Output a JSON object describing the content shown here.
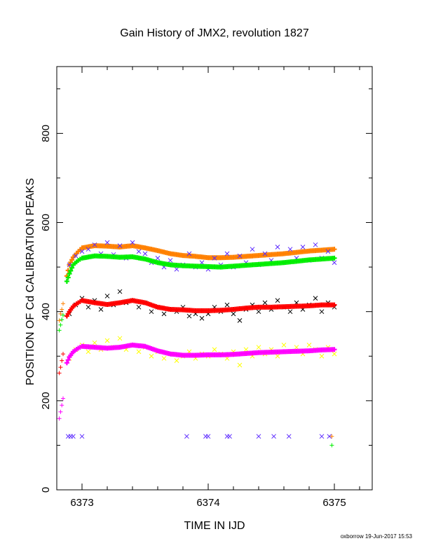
{
  "chart_data": {
    "type": "scatter",
    "title": "Gain History of JMX2, revolution 1827",
    "xlabel": "TIME IN IJD",
    "ylabel": "POSITION OF Cd CALIBRATION PEAKS",
    "footer": "oxborrow 19-Jun-2017 15:53",
    "xlim": [
      6372.8,
      6375.3
    ],
    "ylim": [
      0,
      950
    ],
    "xticks": [
      "6373",
      "6374",
      "6375"
    ],
    "xtick_values": [
      6373,
      6374,
      6375
    ],
    "yticks": [
      "0",
      "200",
      "400",
      "600",
      "800"
    ],
    "ytick_values": [
      0,
      200,
      400,
      600,
      800
    ],
    "grid": false,
    "legend": "none",
    "series": [
      {
        "color": "#ff8000",
        "marker": "plus",
        "fit": true,
        "points": [
          [
            6372.82,
            380
          ],
          [
            6372.83,
            395
          ],
          [
            6372.84,
            405
          ],
          [
            6372.85,
            418
          ],
          [
            6372.88,
            480
          ],
          [
            6372.9,
            505
          ],
          [
            6372.93,
            522
          ],
          [
            6372.97,
            535
          ],
          [
            6373.0,
            543
          ],
          [
            6373.1,
            548
          ],
          [
            6373.2,
            547
          ],
          [
            6373.3,
            545
          ],
          [
            6373.4,
            548
          ],
          [
            6373.5,
            543
          ],
          [
            6373.6,
            537
          ],
          [
            6373.7,
            530
          ],
          [
            6373.8,
            526
          ],
          [
            6373.9,
            524
          ],
          [
            6374.0,
            521
          ],
          [
            6374.1,
            521
          ],
          [
            6374.2,
            522
          ],
          [
            6374.3,
            524
          ],
          [
            6374.4,
            526
          ],
          [
            6374.5,
            528
          ],
          [
            6374.6,
            530
          ],
          [
            6374.7,
            533
          ],
          [
            6374.8,
            536
          ],
          [
            6374.9,
            538
          ],
          [
            6375.0,
            540
          ],
          [
            6374.98,
            120
          ]
        ]
      },
      {
        "color": "#5a28ff",
        "marker": "cross",
        "points": [
          [
            6372.9,
            505
          ],
          [
            6372.95,
            525
          ],
          [
            6373.0,
            535
          ],
          [
            6373.05,
            540
          ],
          [
            6373.1,
            550
          ],
          [
            6373.15,
            530
          ],
          [
            6373.2,
            555
          ],
          [
            6373.25,
            528
          ],
          [
            6373.3,
            548
          ],
          [
            6373.35,
            520
          ],
          [
            6373.4,
            555
          ],
          [
            6373.45,
            535
          ],
          [
            6373.5,
            530
          ],
          [
            6373.55,
            510
          ],
          [
            6373.6,
            520
          ],
          [
            6373.65,
            500
          ],
          [
            6373.7,
            515
          ],
          [
            6373.75,
            495
          ],
          [
            6373.8,
            505
          ],
          [
            6373.85,
            530
          ],
          [
            6373.9,
            500
          ],
          [
            6373.95,
            510
          ],
          [
            6374.0,
            495
          ],
          [
            6374.05,
            520
          ],
          [
            6374.1,
            505
          ],
          [
            6374.15,
            530
          ],
          [
            6374.2,
            500
          ],
          [
            6374.25,
            525
          ],
          [
            6374.3,
            510
          ],
          [
            6374.35,
            540
          ],
          [
            6374.4,
            505
          ],
          [
            6374.45,
            530
          ],
          [
            6374.5,
            515
          ],
          [
            6374.55,
            545
          ],
          [
            6374.6,
            510
          ],
          [
            6374.65,
            540
          ],
          [
            6374.7,
            520
          ],
          [
            6374.75,
            545
          ],
          [
            6374.8,
            515
          ],
          [
            6374.85,
            550
          ],
          [
            6374.9,
            520
          ],
          [
            6374.95,
            535
          ],
          [
            6375.0,
            510
          ],
          [
            6372.89,
            120
          ],
          [
            6372.91,
            120
          ],
          [
            6372.93,
            120
          ],
          [
            6373.0,
            120
          ],
          [
            6373.83,
            120
          ],
          [
            6373.98,
            120
          ],
          [
            6374.0,
            120
          ],
          [
            6374.15,
            120
          ],
          [
            6374.17,
            120
          ],
          [
            6374.4,
            120
          ],
          [
            6374.52,
            120
          ],
          [
            6374.64,
            120
          ],
          [
            6374.9,
            120
          ],
          [
            6374.96,
            120
          ]
        ]
      },
      {
        "color": "#00ee00",
        "marker": "plus",
        "fit": true,
        "points": [
          [
            6372.82,
            358
          ],
          [
            6372.83,
            370
          ],
          [
            6372.84,
            382
          ],
          [
            6372.85,
            392
          ],
          [
            6372.88,
            468
          ],
          [
            6372.9,
            485
          ],
          [
            6372.93,
            505
          ],
          [
            6372.97,
            515
          ],
          [
            6373.0,
            520
          ],
          [
            6373.1,
            525
          ],
          [
            6373.2,
            524
          ],
          [
            6373.3,
            522
          ],
          [
            6373.4,
            523
          ],
          [
            6373.5,
            518
          ],
          [
            6373.6,
            510
          ],
          [
            6373.7,
            505
          ],
          [
            6373.8,
            503
          ],
          [
            6373.9,
            502
          ],
          [
            6374.0,
            501
          ],
          [
            6374.1,
            500
          ],
          [
            6374.2,
            502
          ],
          [
            6374.3,
            504
          ],
          [
            6374.4,
            506
          ],
          [
            6374.5,
            508
          ],
          [
            6374.6,
            510
          ],
          [
            6374.7,
            513
          ],
          [
            6374.8,
            516
          ],
          [
            6374.9,
            518
          ],
          [
            6375.0,
            520
          ],
          [
            6374.98,
            100
          ]
        ]
      },
      {
        "color": "#000000",
        "marker": "cross",
        "points": [
          [
            6372.9,
            395
          ],
          [
            6372.95,
            415
          ],
          [
            6373.0,
            430
          ],
          [
            6373.05,
            410
          ],
          [
            6373.1,
            425
          ],
          [
            6373.15,
            405
          ],
          [
            6373.2,
            435
          ],
          [
            6373.25,
            415
          ],
          [
            6373.3,
            445
          ],
          [
            6373.35,
            420
          ],
          [
            6373.4,
            425
          ],
          [
            6373.45,
            410
          ],
          [
            6373.5,
            420
          ],
          [
            6373.55,
            400
          ],
          [
            6373.6,
            410
          ],
          [
            6373.65,
            395
          ],
          [
            6373.7,
            405
          ],
          [
            6373.75,
            400
          ],
          [
            6373.8,
            410
          ],
          [
            6373.85,
            390
          ],
          [
            6373.9,
            395
          ],
          [
            6373.95,
            385
          ],
          [
            6374.0,
            395
          ],
          [
            6374.05,
            410
          ],
          [
            6374.1,
            400
          ],
          [
            6374.15,
            415
          ],
          [
            6374.2,
            395
          ],
          [
            6374.25,
            380
          ],
          [
            6374.3,
            405
          ],
          [
            6374.35,
            415
          ],
          [
            6374.4,
            400
          ],
          [
            6374.45,
            420
          ],
          [
            6374.5,
            405
          ],
          [
            6374.55,
            425
          ],
          [
            6374.6,
            410
          ],
          [
            6374.65,
            400
          ],
          [
            6374.7,
            420
          ],
          [
            6374.75,
            405
          ],
          [
            6374.8,
            415
          ],
          [
            6374.85,
            430
          ],
          [
            6374.9,
            400
          ],
          [
            6374.95,
            420
          ],
          [
            6375.0,
            410
          ]
        ]
      },
      {
        "color": "#ff0000",
        "marker": "plus",
        "fit": true,
        "points": [
          [
            6372.82,
            262
          ],
          [
            6372.83,
            275
          ],
          [
            6372.84,
            290
          ],
          [
            6372.85,
            305
          ],
          [
            6372.88,
            390
          ],
          [
            6372.9,
            400
          ],
          [
            6372.93,
            412
          ],
          [
            6372.97,
            420
          ],
          [
            6373.0,
            425
          ],
          [
            6373.1,
            420
          ],
          [
            6373.2,
            416
          ],
          [
            6373.3,
            420
          ],
          [
            6373.4,
            425
          ],
          [
            6373.5,
            420
          ],
          [
            6373.6,
            410
          ],
          [
            6373.7,
            405
          ],
          [
            6373.8,
            404
          ],
          [
            6373.9,
            402
          ],
          [
            6374.0,
            402
          ],
          [
            6374.1,
            403
          ],
          [
            6374.2,
            405
          ],
          [
            6374.3,
            408
          ],
          [
            6374.4,
            410
          ],
          [
            6374.5,
            410
          ],
          [
            6374.6,
            411
          ],
          [
            6374.7,
            412
          ],
          [
            6374.8,
            413
          ],
          [
            6374.9,
            415
          ],
          [
            6375.0,
            415
          ]
        ]
      },
      {
        "color": "#ffff00",
        "marker": "cross",
        "points": [
          [
            6372.9,
            295
          ],
          [
            6372.95,
            315
          ],
          [
            6373.0,
            325
          ],
          [
            6373.05,
            310
          ],
          [
            6373.1,
            330
          ],
          [
            6373.15,
            315
          ],
          [
            6373.2,
            335
          ],
          [
            6373.25,
            320
          ],
          [
            6373.3,
            340
          ],
          [
            6373.35,
            315
          ],
          [
            6373.4,
            325
          ],
          [
            6373.45,
            310
          ],
          [
            6373.5,
            320
          ],
          [
            6373.55,
            300
          ],
          [
            6373.6,
            310
          ],
          [
            6373.65,
            295
          ],
          [
            6373.7,
            305
          ],
          [
            6373.75,
            290
          ],
          [
            6373.8,
            300
          ],
          [
            6373.85,
            310
          ],
          [
            6373.9,
            295
          ],
          [
            6373.95,
            305
          ],
          [
            6374.0,
            300
          ],
          [
            6374.05,
            315
          ],
          [
            6374.1,
            305
          ],
          [
            6374.15,
            295
          ],
          [
            6374.2,
            310
          ],
          [
            6374.25,
            280
          ],
          [
            6374.3,
            315
          ],
          [
            6374.35,
            300
          ],
          [
            6374.4,
            320
          ],
          [
            6374.45,
            305
          ],
          [
            6374.5,
            315
          ],
          [
            6374.55,
            300
          ],
          [
            6374.6,
            325
          ],
          [
            6374.65,
            310
          ],
          [
            6374.7,
            320
          ],
          [
            6374.75,
            305
          ],
          [
            6374.8,
            325
          ],
          [
            6374.85,
            315
          ],
          [
            6374.9,
            300
          ],
          [
            6374.95,
            320
          ],
          [
            6375.0,
            305
          ]
        ]
      },
      {
        "color": "#ff00ff",
        "marker": "plus",
        "fit": true,
        "points": [
          [
            6372.82,
            160
          ],
          [
            6372.83,
            175
          ],
          [
            6372.84,
            190
          ],
          [
            6372.85,
            205
          ],
          [
            6372.88,
            285
          ],
          [
            6372.9,
            298
          ],
          [
            6372.93,
            310
          ],
          [
            6372.97,
            318
          ],
          [
            6373.0,
            322
          ],
          [
            6373.1,
            320
          ],
          [
            6373.2,
            318
          ],
          [
            6373.3,
            320
          ],
          [
            6373.4,
            325
          ],
          [
            6373.5,
            322
          ],
          [
            6373.6,
            312
          ],
          [
            6373.7,
            305
          ],
          [
            6373.8,
            302
          ],
          [
            6373.9,
            302
          ],
          [
            6374.0,
            303
          ],
          [
            6374.1,
            303
          ],
          [
            6374.2,
            304
          ],
          [
            6374.3,
            306
          ],
          [
            6374.4,
            308
          ],
          [
            6374.5,
            309
          ],
          [
            6374.6,
            310
          ],
          [
            6374.7,
            311
          ],
          [
            6374.8,
            312
          ],
          [
            6374.9,
            314
          ],
          [
            6375.0,
            315
          ]
        ]
      }
    ]
  }
}
